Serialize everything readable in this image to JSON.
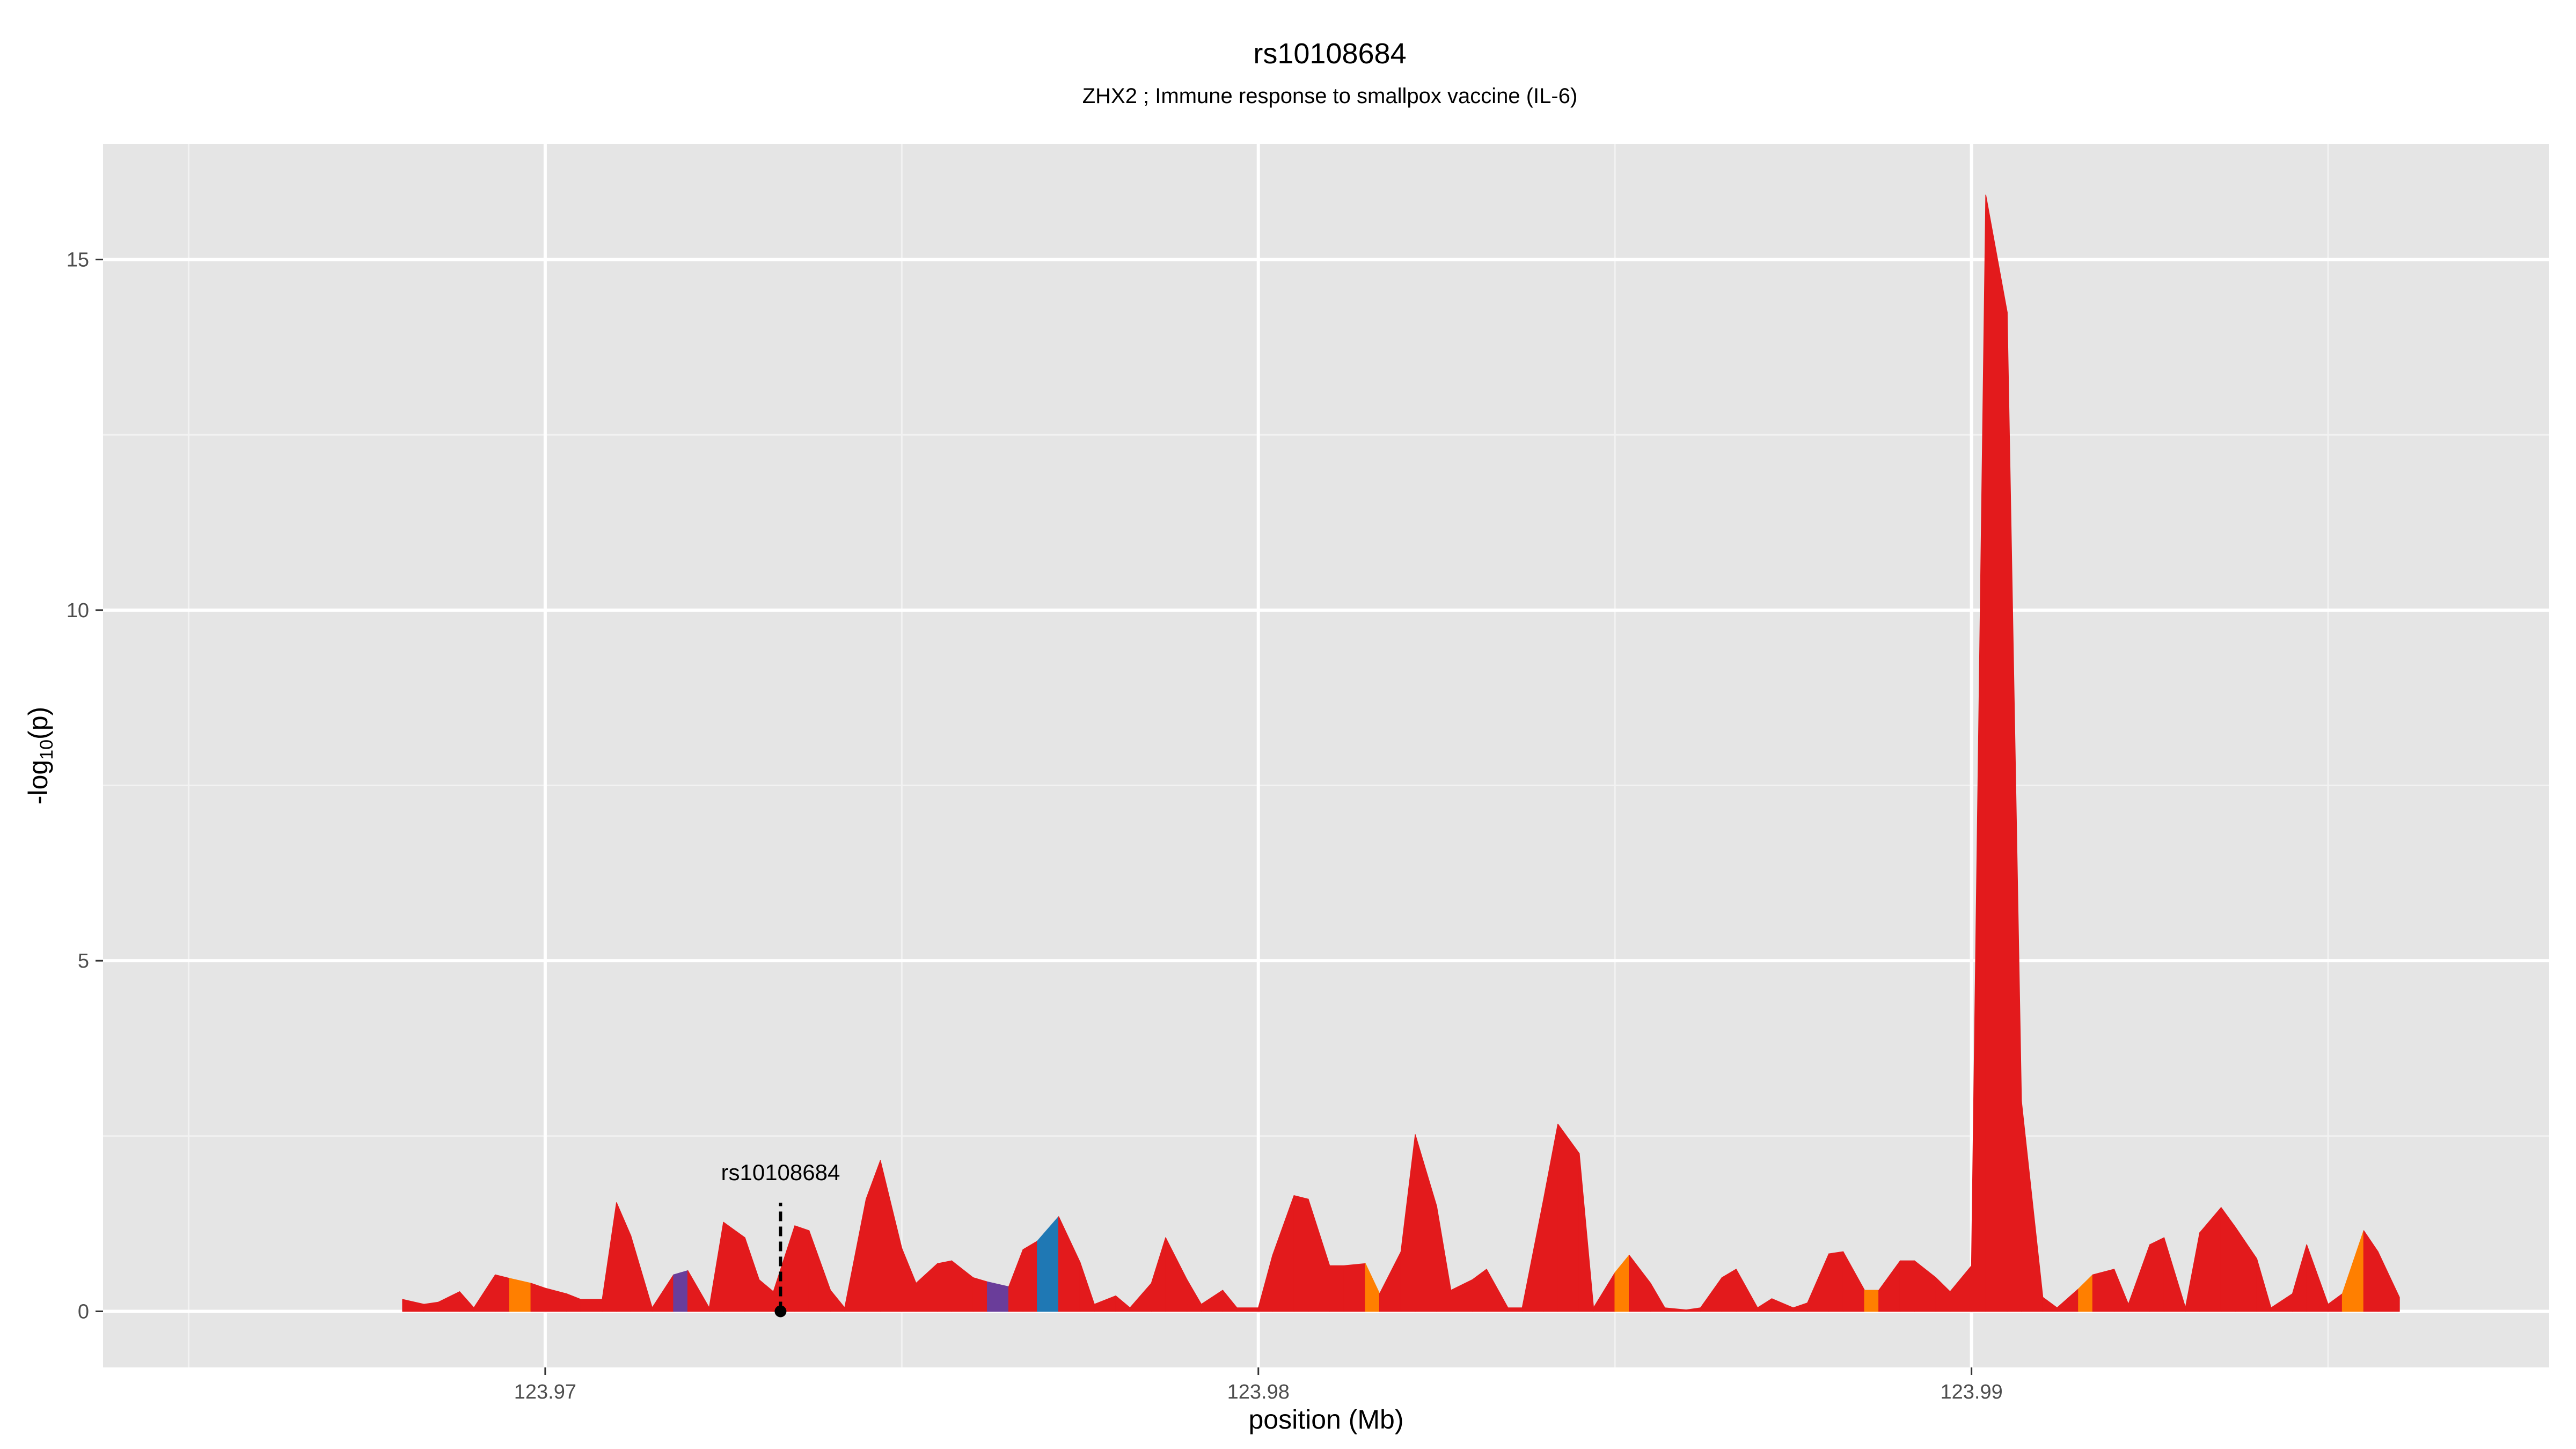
{
  "chart_data": {
    "type": "area",
    "title": "rs10108684",
    "subtitle": "ZHX2 ; Immune response to smallpox vaccine (IL-6)",
    "xlabel": "position (Mb)",
    "ylabel": "-log10(p)",
    "ylabel_parts": {
      "prefix": "-log",
      "sub": "10",
      "suffix": "(p)"
    },
    "xlim": [
      123.9638,
      123.9981
    ],
    "ylim": [
      -0.8,
      16.65
    ],
    "x_ticks": [
      {
        "value": 123.97,
        "label": "123.97"
      },
      {
        "value": 123.98,
        "label": "123.98"
      },
      {
        "value": 123.99,
        "label": "123.99"
      }
    ],
    "y_ticks": [
      {
        "value": 0,
        "label": "0"
      },
      {
        "value": 5,
        "label": "5"
      },
      {
        "value": 10,
        "label": "10"
      },
      {
        "value": 15,
        "label": "15"
      }
    ],
    "grid": true,
    "minor_grid": true,
    "background": "#e5e5e5",
    "colors": {
      "red": "#e31a1c",
      "orange": "#ff7f00",
      "purple": "#6a3d9a",
      "blue": "#1f78b4"
    },
    "annotation": {
      "label": "rs10108684",
      "x": 123.9733,
      "y": 0
    },
    "points": [
      [
        123.968,
        0.17,
        "red"
      ],
      [
        123.9683,
        0.1,
        "red"
      ],
      [
        123.9685,
        0.13,
        "red"
      ],
      [
        123.9688,
        0.28,
        "red"
      ],
      [
        123.969,
        0.05,
        "red"
      ],
      [
        123.9693,
        0.52,
        "red"
      ],
      [
        123.9695,
        0.47,
        "orange"
      ],
      [
        123.9698,
        0.4,
        "red"
      ],
      [
        123.97,
        0.33,
        "red"
      ],
      [
        123.9703,
        0.25,
        "red"
      ],
      [
        123.9705,
        0.17,
        "red"
      ],
      [
        123.9708,
        0.17,
        "red"
      ],
      [
        123.971,
        1.55,
        "red"
      ],
      [
        123.9712,
        1.08,
        "red"
      ],
      [
        123.9715,
        0.05,
        "red"
      ],
      [
        123.9718,
        0.52,
        "purple"
      ],
      [
        123.972,
        0.58,
        "red"
      ],
      [
        123.9723,
        0.05,
        "red"
      ],
      [
        123.9725,
        1.27,
        "red"
      ],
      [
        123.9728,
        1.05,
        "red"
      ],
      [
        123.973,
        0.45,
        "red"
      ],
      [
        123.9732,
        0.28,
        "red"
      ],
      [
        123.9735,
        1.22,
        "red"
      ],
      [
        123.9737,
        1.15,
        "red"
      ],
      [
        123.974,
        0.3,
        "red"
      ],
      [
        123.9742,
        0.05,
        "red"
      ],
      [
        123.9745,
        1.6,
        "red"
      ],
      [
        123.9747,
        2.15,
        "red"
      ],
      [
        123.975,
        0.9,
        "red"
      ],
      [
        123.9752,
        0.4,
        "red"
      ],
      [
        123.9755,
        0.68,
        "red"
      ],
      [
        123.9757,
        0.72,
        "red"
      ],
      [
        123.976,
        0.48,
        "red"
      ],
      [
        123.9762,
        0.42,
        "purple"
      ],
      [
        123.9765,
        0.35,
        "red"
      ],
      [
        123.9767,
        0.88,
        "red"
      ],
      [
        123.9769,
        1.0,
        "blue"
      ],
      [
        123.9772,
        1.35,
        "red"
      ],
      [
        123.9775,
        0.7,
        "red"
      ],
      [
        123.9777,
        0.1,
        "red"
      ],
      [
        123.978,
        0.22,
        "red"
      ],
      [
        123.9782,
        0.05,
        "red"
      ],
      [
        123.9785,
        0.4,
        "red"
      ],
      [
        123.9787,
        1.05,
        "red"
      ],
      [
        123.979,
        0.45,
        "red"
      ],
      [
        123.9792,
        0.1,
        "red"
      ],
      [
        123.9795,
        0.3,
        "red"
      ],
      [
        123.9797,
        0.05,
        "red"
      ],
      [
        123.98,
        0.05,
        "red"
      ],
      [
        123.9802,
        0.8,
        "red"
      ],
      [
        123.9805,
        1.65,
        "red"
      ],
      [
        123.9807,
        1.6,
        "red"
      ],
      [
        123.981,
        0.65,
        "red"
      ],
      [
        123.9812,
        0.65,
        "red"
      ],
      [
        123.9815,
        0.68,
        "orange"
      ],
      [
        123.9817,
        0.25,
        "red"
      ],
      [
        123.982,
        0.85,
        "red"
      ],
      [
        123.9822,
        2.52,
        "red"
      ],
      [
        123.9825,
        1.5,
        "red"
      ],
      [
        123.9827,
        0.3,
        "red"
      ],
      [
        123.983,
        0.45,
        "red"
      ],
      [
        123.9832,
        0.6,
        "red"
      ],
      [
        123.9835,
        0.05,
        "red"
      ],
      [
        123.9837,
        0.05,
        "red"
      ],
      [
        123.984,
        1.6,
        "red"
      ],
      [
        123.9842,
        2.67,
        "red"
      ],
      [
        123.9845,
        2.25,
        "red"
      ],
      [
        123.9847,
        0.05,
        "red"
      ],
      [
        123.985,
        0.55,
        "orange"
      ],
      [
        123.9852,
        0.8,
        "red"
      ],
      [
        123.9855,
        0.4,
        "red"
      ],
      [
        123.9857,
        0.05,
        "red"
      ],
      [
        123.986,
        0.02,
        "red"
      ],
      [
        123.9862,
        0.05,
        "red"
      ],
      [
        123.9865,
        0.48,
        "red"
      ],
      [
        123.9867,
        0.6,
        "red"
      ],
      [
        123.987,
        0.05,
        "red"
      ],
      [
        123.9872,
        0.18,
        "red"
      ],
      [
        123.9875,
        0.05,
        "red"
      ],
      [
        123.9877,
        0.12,
        "red"
      ],
      [
        123.988,
        0.82,
        "red"
      ],
      [
        123.9882,
        0.85,
        "red"
      ],
      [
        123.9885,
        0.3,
        "orange"
      ],
      [
        123.9887,
        0.3,
        "red"
      ],
      [
        123.989,
        0.72,
        "red"
      ],
      [
        123.9892,
        0.72,
        "red"
      ],
      [
        123.9895,
        0.48,
        "red"
      ],
      [
        123.9897,
        0.28,
        "red"
      ],
      [
        123.99,
        0.65,
        "red"
      ],
      [
        123.9902,
        15.92,
        "red"
      ],
      [
        123.9905,
        14.25,
        "red"
      ],
      [
        123.9907,
        3.0,
        "red"
      ],
      [
        123.991,
        0.2,
        "red"
      ],
      [
        123.9912,
        0.05,
        "red"
      ],
      [
        123.9915,
        0.32,
        "orange"
      ],
      [
        123.9917,
        0.52,
        "red"
      ],
      [
        123.992,
        0.6,
        "red"
      ],
      [
        123.9922,
        0.1,
        "red"
      ],
      [
        123.9925,
        0.95,
        "red"
      ],
      [
        123.9927,
        1.05,
        "red"
      ],
      [
        123.993,
        0.05,
        "red"
      ],
      [
        123.9932,
        1.12,
        "red"
      ],
      [
        123.9935,
        1.48,
        "red"
      ],
      [
        123.9937,
        1.2,
        "red"
      ],
      [
        123.994,
        0.75,
        "red"
      ],
      [
        123.9942,
        0.05,
        "red"
      ],
      [
        123.9945,
        0.25,
        "red"
      ],
      [
        123.9947,
        0.95,
        "red"
      ],
      [
        123.995,
        0.1,
        "red"
      ],
      [
        123.9952,
        0.25,
        "orange"
      ],
      [
        123.9955,
        1.15,
        "red"
      ],
      [
        123.9957,
        0.85,
        "red"
      ],
      [
        123.996,
        0.2,
        "red"
      ]
    ]
  }
}
